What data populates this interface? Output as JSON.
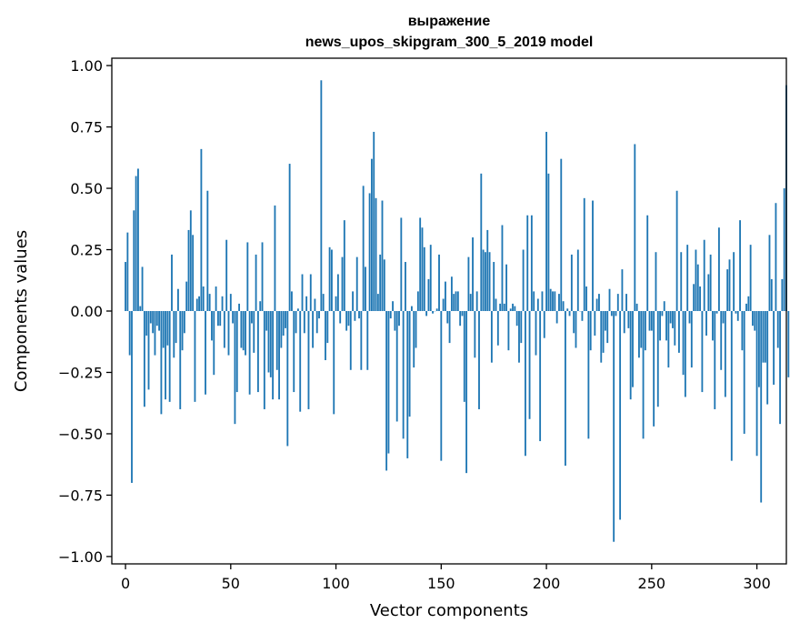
{
  "chart_data": {
    "type": "bar",
    "title_line1": "выражение",
    "title_line2": "news_upos_skipgram_300_5_2019 model",
    "xlabel": "Vector components",
    "ylabel": "Components values",
    "xlim": [
      -6.5,
      314
    ],
    "ylim": [
      -1.03,
      1.03
    ],
    "xticks": [
      0,
      50,
      100,
      150,
      200,
      250,
      300
    ],
    "yticks": [
      1.0,
      0.75,
      0.5,
      0.25,
      0.0,
      -0.25,
      -0.5,
      -0.75,
      -1.0
    ],
    "ytick_labels": [
      "1.00",
      "0.75",
      "0.50",
      "0.25",
      "0.00",
      "−0.25",
      "−0.50",
      "−0.75",
      "−1.00"
    ],
    "bar_color": "#1f77b4",
    "grid": false,
    "series": [
      {
        "x_start": 0,
        "values": [
          0.2,
          0.32,
          -0.18,
          -0.7,
          0.41,
          0.55,
          0.58,
          0.02,
          0.18,
          -0.39,
          -0.1,
          -0.32,
          -0.05,
          -0.09,
          -0.18,
          -0.06,
          -0.08,
          -0.42,
          -0.15,
          -0.36,
          -0.14,
          -0.37,
          0.23,
          -0.19,
          -0.13,
          0.09,
          -0.4,
          -0.16,
          -0.09,
          0.12,
          0.33,
          0.41,
          0.31,
          -0.37,
          0.05,
          0.06,
          0.66,
          0.1,
          -0.34,
          0.49,
          0.07,
          -0.12,
          -0.26,
          0.1,
          -0.06,
          -0.06,
          0.06,
          -0.15,
          0.29,
          -0.18,
          0.07,
          -0.05,
          -0.46,
          -0.33,
          0.03,
          -0.15,
          -0.16,
          -0.18,
          0.28,
          -0.34,
          -0.05,
          -0.17,
          0.23,
          -0.33,
          0.04,
          0.28,
          -0.4,
          -0.08,
          -0.25,
          -0.27,
          -0.36,
          0.43,
          -0.24,
          -0.36,
          -0.15,
          -0.1,
          -0.07,
          -0.55,
          0.6,
          0.08,
          -0.33,
          -0.09,
          0.01,
          -0.41,
          0.15,
          -0.09,
          0.06,
          -0.4,
          0.15,
          -0.15,
          0.05,
          -0.09,
          -0.03,
          0.94,
          0.07,
          -0.2,
          -0.13,
          0.26,
          0.25,
          -0.42,
          0.06,
          0.15,
          -0.05,
          0.22,
          0.37,
          -0.08,
          -0.06,
          -0.24,
          0.08,
          -0.04,
          0.22,
          -0.03,
          -0.24,
          0.51,
          0.18,
          -0.24,
          0.48,
          0.62,
          0.73,
          0.46,
          0.07,
          0.23,
          0.45,
          0.21,
          -0.65,
          -0.58,
          -0.03,
          0.04,
          -0.08,
          -0.45,
          -0.06,
          0.38,
          -0.52,
          0.2,
          -0.6,
          -0.43,
          0.02,
          -0.23,
          -0.15,
          0.08,
          0.38,
          0.34,
          0.26,
          -0.02,
          0.13,
          0.27,
          -0.01,
          0.0,
          0.01,
          0.23,
          -0.61,
          0.05,
          0.12,
          -0.05,
          -0.13,
          0.14,
          0.07,
          0.08,
          0.08,
          -0.06,
          -0.02,
          -0.37,
          -0.66,
          0.22,
          0.07,
          0.3,
          -0.19,
          0.08,
          -0.4,
          0.56,
          0.25,
          0.24,
          0.33,
          0.24,
          -0.21,
          0.2,
          0.05,
          -0.14,
          0.03,
          0.35,
          0.03,
          0.19,
          -0.16,
          0.01,
          0.03,
          0.02,
          -0.06,
          -0.21,
          -0.13,
          0.25,
          -0.59,
          0.39,
          -0.44,
          0.39,
          0.08,
          -0.18,
          0.05,
          -0.53,
          0.08,
          -0.11,
          0.73,
          0.56,
          0.09,
          0.08,
          0.08,
          -0.05,
          0.07,
          0.62,
          0.04,
          -0.63,
          0.01,
          -0.02,
          0.23,
          -0.09,
          -0.15,
          0.25,
          0.0,
          -0.04,
          0.46,
          0.1,
          -0.52,
          -0.16,
          0.45,
          -0.1,
          0.05,
          0.07,
          -0.21,
          -0.17,
          -0.08,
          -0.13,
          0.09,
          -0.02,
          -0.94,
          -0.02,
          0.07,
          -0.85,
          0.17,
          -0.09,
          0.07,
          -0.07,
          -0.36,
          -0.31,
          0.68,
          0.03,
          -0.19,
          -0.15,
          -0.52,
          -0.16,
          0.39,
          -0.08,
          -0.08,
          -0.47,
          0.24,
          -0.39,
          -0.12,
          -0.02,
          0.04,
          -0.12,
          -0.23,
          -0.05,
          -0.07,
          -0.14,
          0.49,
          -0.17,
          0.24,
          -0.26,
          -0.35,
          0.27,
          -0.05,
          -0.23,
          0.11,
          0.25,
          0.19,
          0.1,
          -0.33,
          0.29,
          -0.1,
          0.15,
          0.23,
          -0.12,
          -0.4,
          -0.01,
          0.34,
          -0.24,
          -0.05,
          -0.35,
          0.17,
          0.21,
          -0.61,
          0.24,
          -0.01,
          -0.04,
          0.37,
          -0.16,
          -0.5,
          0.03,
          0.06,
          0.27,
          -0.06,
          -0.08,
          -0.59,
          -0.31,
          -0.78,
          -0.21,
          -0.21,
          -0.38,
          0.31,
          0.13,
          -0.3,
          0.44,
          -0.15,
          -0.46,
          0.13,
          0.5,
          0.92,
          -0.27
        ]
      }
    ]
  }
}
